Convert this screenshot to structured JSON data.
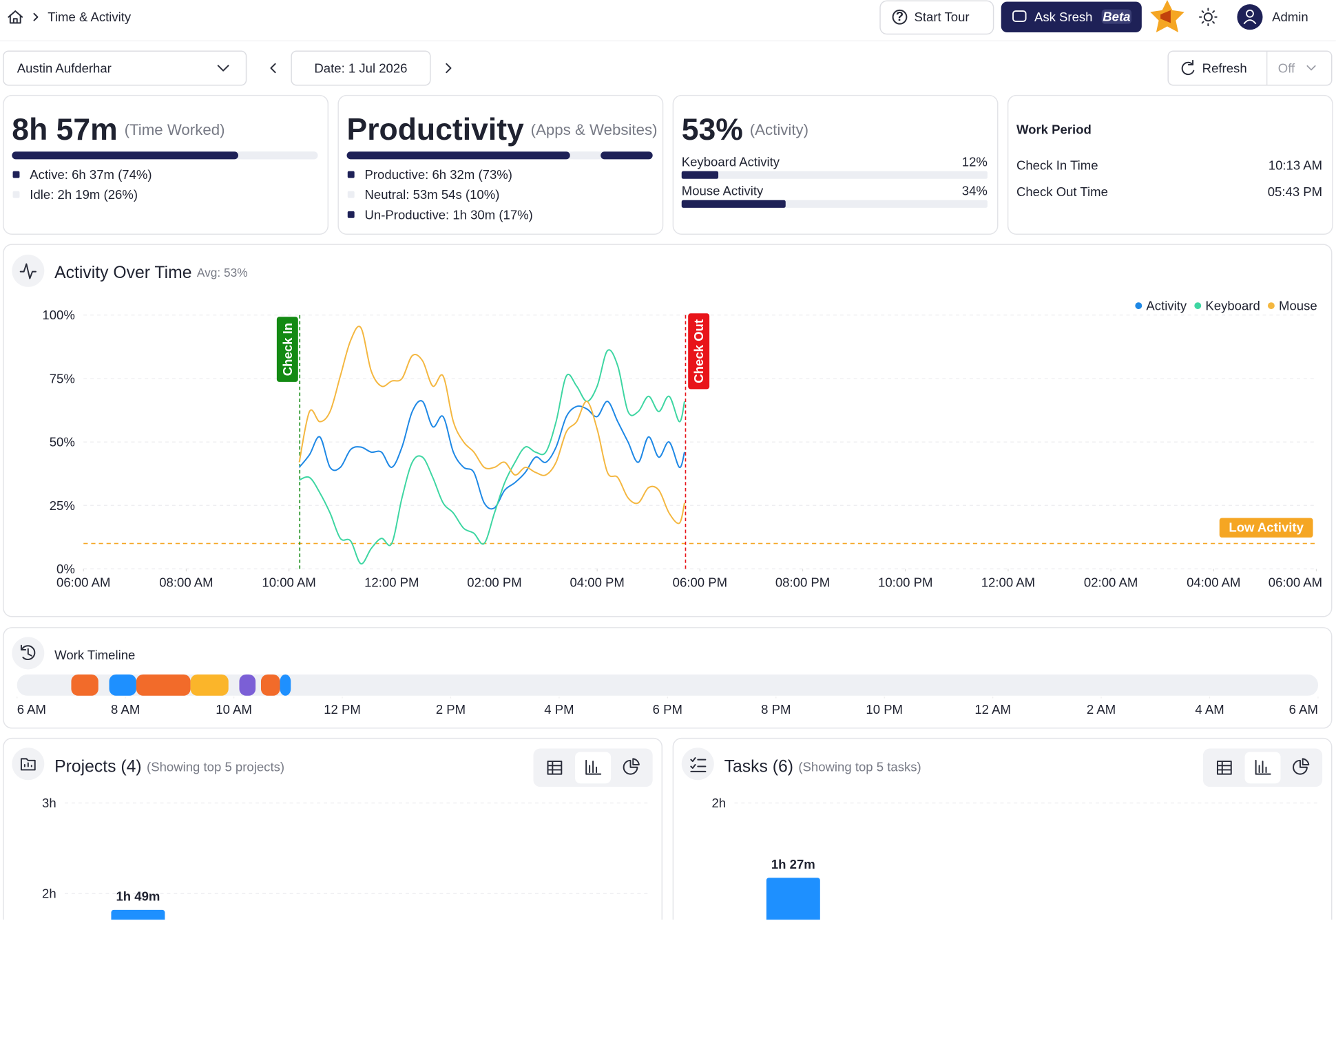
{
  "header": {
    "breadcrumb": "Time & Activity",
    "start_tour": "Start Tour",
    "ask": "Ask Sresh",
    "badge": "Beta",
    "user": "Admin"
  },
  "toolbar": {
    "employee": "Austin Aufderhar",
    "date": "Date: 1 Jul 2026",
    "refresh": "Refresh",
    "auto_refresh": "Off"
  },
  "cards": [
    {
      "title": "8h 57m",
      "caption": "(Time Worked)",
      "xlim": [
        0,
        100
      ],
      "segments": [
        {
          "label": "Active: 6h 37m (74%)",
          "value": 74,
          "color": "#1e2157"
        },
        {
          "label": "Idle: 2h 19m (26%)",
          "value": 26,
          "color": "#eceef3"
        }
      ]
    },
    {
      "title": "Productivity",
      "caption": "(Apps & Websites)",
      "xlim": [
        0,
        100
      ],
      "segments": [
        {
          "label": "Productive: 6h 32m (73%)",
          "value": 73,
          "color": "#1e2157"
        },
        {
          "label": "Neutral: 53m 54s (10%)",
          "value": 10,
          "color": "#eceef3"
        },
        {
          "label": "Un-Productive: 1h 30m (17%)",
          "value": 17,
          "color": "#1e2157"
        }
      ]
    },
    {
      "title": "53%",
      "caption": "(Activity)",
      "xlim": [
        0,
        100
      ],
      "color": "#1e2157",
      "bars": [
        {
          "label": "Keyboard Activity",
          "value": 12,
          "value_label": "12%"
        },
        {
          "label": "Mouse Activity",
          "value": 34,
          "value_label": "34%"
        }
      ]
    },
    {
      "title": "Work Period",
      "rows": [
        {
          "label": "Check In Time",
          "value": "10:13 AM"
        },
        {
          "label": "Check Out Time",
          "value": "05:43 PM"
        }
      ]
    }
  ],
  "chart_data": [
    {
      "type": "line",
      "title": "Activity Over Time",
      "subtitle": "Avg: 53%",
      "x": [
        10.2,
        10.4,
        10.6,
        10.8,
        11,
        11.2,
        11.4,
        11.6,
        11.8,
        12,
        12.2,
        12.4,
        12.6,
        12.8,
        13,
        13.2,
        13.4,
        13.6,
        13.8,
        14,
        14.2,
        14.4,
        14.6,
        14.8,
        15,
        15.2,
        15.4,
        15.6,
        15.8,
        16,
        16.2,
        16.4,
        16.6,
        16.8,
        17,
        17.2,
        17.4,
        17.6,
        17.7
      ],
      "xlim": [
        6,
        30
      ],
      "xticks": [
        {
          "value": 6,
          "label": "06:00 AM"
        },
        {
          "value": 8,
          "label": "08:00 AM"
        },
        {
          "value": 10,
          "label": "10:00 AM"
        },
        {
          "value": 12,
          "label": "12:00 PM"
        },
        {
          "value": 14,
          "label": "02:00 PM"
        },
        {
          "value": 16,
          "label": "04:00 PM"
        },
        {
          "value": 18,
          "label": "06:00 PM"
        },
        {
          "value": 20,
          "label": "08:00 PM"
        },
        {
          "value": 22,
          "label": "10:00 PM"
        },
        {
          "value": 24,
          "label": "12:00 AM"
        },
        {
          "value": 26,
          "label": "02:00 AM"
        },
        {
          "value": 28,
          "label": "04:00 AM"
        },
        {
          "value": 30,
          "label": "06:00 AM"
        }
      ],
      "ylim": [
        0,
        100
      ],
      "yticks": [
        {
          "value": 0,
          "label": "0%"
        },
        {
          "value": 25,
          "label": "25%"
        },
        {
          "value": 50,
          "label": "50%"
        },
        {
          "value": 75,
          "label": "75%"
        },
        {
          "value": 100,
          "label": "100%"
        }
      ],
      "grid": true,
      "legend": "top-right",
      "series": [
        {
          "name": "Activity",
          "color": "#1e88e5",
          "values": [
            40,
            45,
            52,
            40,
            40,
            47,
            48,
            46,
            46,
            40,
            48,
            62,
            66,
            56,
            60,
            46,
            40,
            38,
            26,
            24,
            31,
            34,
            38,
            44,
            42,
            48,
            60,
            64,
            63,
            60,
            66,
            58,
            50,
            42,
            52,
            44,
            50,
            40,
            46
          ]
        },
        {
          "name": "Keyboard",
          "color": "#3ed6a2",
          "values": [
            35,
            36,
            30,
            22,
            12,
            11,
            2,
            8,
            12,
            10,
            28,
            42,
            44,
            36,
            26,
            22,
            16,
            14,
            10,
            22,
            34,
            42,
            48,
            46,
            46,
            58,
            76,
            72,
            66,
            72,
            86,
            80,
            62,
            62,
            68,
            62,
            68,
            58,
            66
          ]
        },
        {
          "name": "Mouse",
          "color": "#f4b740",
          "values": [
            42,
            62,
            58,
            62,
            76,
            90,
            95,
            78,
            72,
            74,
            75,
            84,
            82,
            72,
            76,
            58,
            50,
            46,
            40,
            40,
            42,
            37,
            40,
            38,
            37,
            42,
            54,
            58,
            66,
            55,
            38,
            36,
            28,
            26,
            32,
            31,
            22,
            18,
            26
          ]
        }
      ],
      "annotations": [
        {
          "label": "Check In",
          "x": 10.21,
          "color": "#138a13"
        },
        {
          "label": "Check Out",
          "x": 17.72,
          "color": "#e8141a"
        }
      ],
      "threshold": {
        "label": "Low Activity",
        "y": 10,
        "color": "#f5a623"
      }
    },
    {
      "type": "timeline",
      "title": "Work Timeline",
      "xlim": [
        6,
        30
      ],
      "xticks": [
        {
          "value": 6,
          "label": "6 AM"
        },
        {
          "value": 8,
          "label": "8 AM"
        },
        {
          "value": 10,
          "label": "10 AM"
        },
        {
          "value": 12,
          "label": "12 PM"
        },
        {
          "value": 14,
          "label": "2 PM"
        },
        {
          "value": 16,
          "label": "4 PM"
        },
        {
          "value": 18,
          "label": "6 PM"
        },
        {
          "value": 20,
          "label": "8 PM"
        },
        {
          "value": 22,
          "label": "10 PM"
        },
        {
          "value": 24,
          "label": "12 AM"
        },
        {
          "value": 26,
          "label": "2 AM"
        },
        {
          "value": 28,
          "label": "4 AM"
        },
        {
          "value": 30,
          "label": "6 AM"
        }
      ],
      "segments": [
        {
          "start": 7.0,
          "end": 7.5,
          "color": "#f26b2a"
        },
        {
          "start": 7.7,
          "end": 8.2,
          "color": "#1e90ff"
        },
        {
          "start": 8.2,
          "end": 9.2,
          "color": "#f26b2a"
        },
        {
          "start": 9.2,
          "end": 9.9,
          "color": "#fbb52a"
        },
        {
          "start": 10.1,
          "end": 10.4,
          "color": "#7b5fd6"
        },
        {
          "start": 10.5,
          "end": 10.85,
          "color": "#f26b2a"
        },
        {
          "start": 10.85,
          "end": 11.05,
          "color": "#1e90ff"
        }
      ]
    },
    {
      "type": "bar",
      "title": "Projects (4)",
      "subtitle": "(Showing top 5 projects)",
      "categories": [
        null
      ],
      "values": [
        1.82
      ],
      "value_labels": [
        "1h 49m"
      ],
      "color": "#1e90ff",
      "ylim": [
        0,
        3
      ],
      "yticks": [
        {
          "value": 3,
          "label": "3h"
        },
        {
          "value": 2,
          "label": "2h"
        }
      ],
      "grid": true
    },
    {
      "type": "bar",
      "title": "Tasks (6)",
      "subtitle": "(Showing top 5 tasks)",
      "categories": [
        null
      ],
      "values": [
        1.45
      ],
      "value_labels": [
        "1h 27m"
      ],
      "color": "#1e90ff",
      "ylim": [
        0,
        2
      ],
      "yticks": [
        {
          "value": 2,
          "label": "2h"
        }
      ],
      "grid": true
    }
  ]
}
